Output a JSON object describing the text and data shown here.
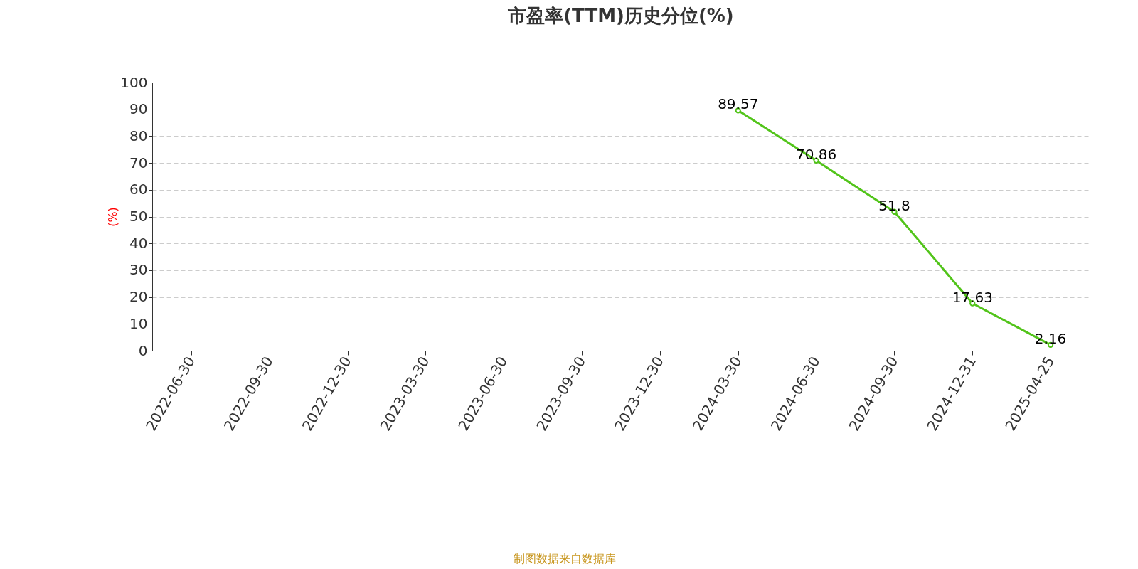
{
  "chart_data": {
    "type": "line",
    "title": "市盈率(TTM)历史分位(%)",
    "ylabel": "(%)",
    "categories": [
      "2022-06-30",
      "2022-09-30",
      "2022-12-30",
      "2023-03-30",
      "2023-06-30",
      "2023-09-30",
      "2023-12-30",
      "2024-03-30",
      "2024-06-30",
      "2024-09-30",
      "2024-12-31",
      "2025-04-25"
    ],
    "series": [
      {
        "color": "#52c41a",
        "values": [
          null,
          null,
          null,
          null,
          null,
          null,
          null,
          89.57,
          70.86,
          51.8,
          17.63,
          2.16
        ]
      }
    ],
    "ylim": [
      0,
      100
    ],
    "yticks": [
      0,
      10,
      20,
      30,
      40,
      50,
      60,
      70,
      80,
      90,
      100
    ],
    "grid": "y",
    "marker": "circle",
    "line_style": "solid",
    "data_labels": true,
    "annotations": [
      "制图数据来自数据库"
    ]
  }
}
